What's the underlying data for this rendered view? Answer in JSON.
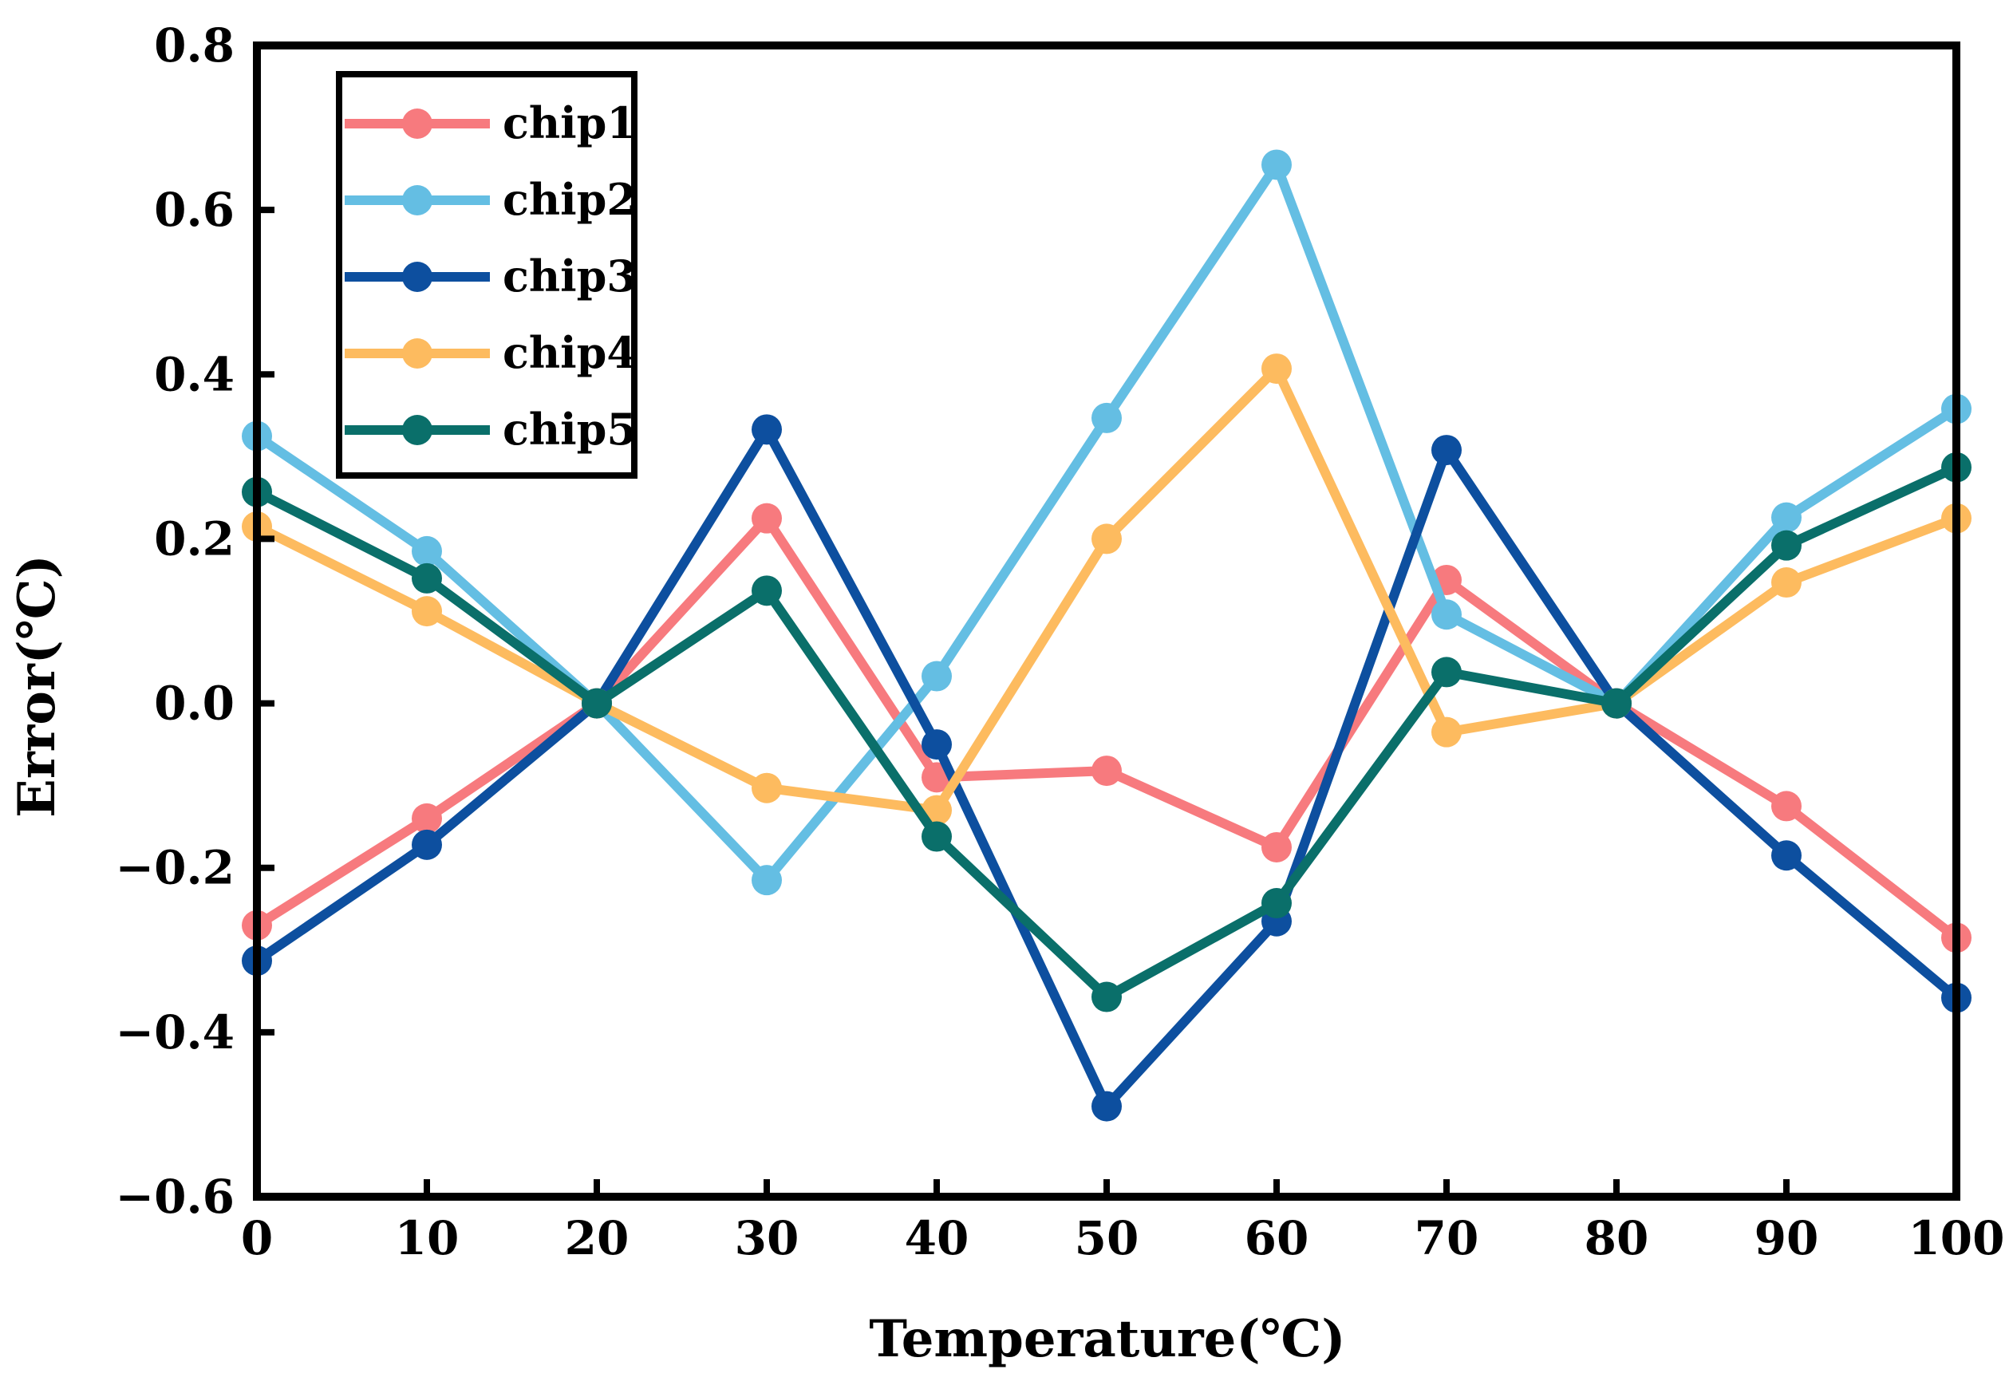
{
  "chart_data": {
    "type": "line",
    "title": "",
    "xlabel": "Temperature(℃)",
    "ylabel": "Error(℃)",
    "xlim": [
      0,
      100
    ],
    "ylim": [
      -0.6,
      0.8
    ],
    "x": [
      0,
      10,
      20,
      30,
      40,
      50,
      60,
      70,
      80,
      90,
      100
    ],
    "xticks": [
      "0",
      "10",
      "20",
      "30",
      "40",
      "50",
      "60",
      "70",
      "80",
      "90",
      "100"
    ],
    "yticks": [
      "0.8",
      "0.6",
      "0.4",
      "0.2",
      "0.0",
      "−0.2",
      "−0.4",
      "−0.6"
    ],
    "ytick_values": [
      0.8,
      0.6,
      0.4,
      0.2,
      0.0,
      -0.2,
      -0.4,
      -0.6
    ],
    "grid": false,
    "legend_position": "top-left",
    "series": [
      {
        "name": "chip1",
        "color": "#F77A7E",
        "values": [
          -0.27,
          -0.14,
          0.0,
          0.225,
          -0.09,
          -0.082,
          -0.175,
          0.15,
          0.0,
          -0.125,
          -0.285
        ]
      },
      {
        "name": "chip2",
        "color": "#64BEE3",
        "values": [
          0.325,
          0.185,
          0.0,
          -0.215,
          0.033,
          0.347,
          0.655,
          0.108,
          0.0,
          0.226,
          0.358
        ]
      },
      {
        "name": "chip3",
        "color": "#0D4F9F",
        "values": [
          -0.313,
          -0.172,
          0.0,
          0.333,
          -0.05,
          -0.49,
          -0.265,
          0.308,
          0.0,
          -0.185,
          -0.358
        ]
      },
      {
        "name": "chip4",
        "color": "#FDBB5F",
        "values": [
          0.215,
          0.112,
          0.0,
          -0.103,
          -0.13,
          0.2,
          0.407,
          -0.035,
          0.0,
          0.147,
          0.225
        ]
      },
      {
        "name": "chip5",
        "color": "#0A6F6A",
        "values": [
          0.257,
          0.152,
          0.0,
          0.137,
          -0.162,
          -0.357,
          -0.243,
          0.038,
          0.0,
          0.192,
          0.287
        ]
      }
    ]
  }
}
